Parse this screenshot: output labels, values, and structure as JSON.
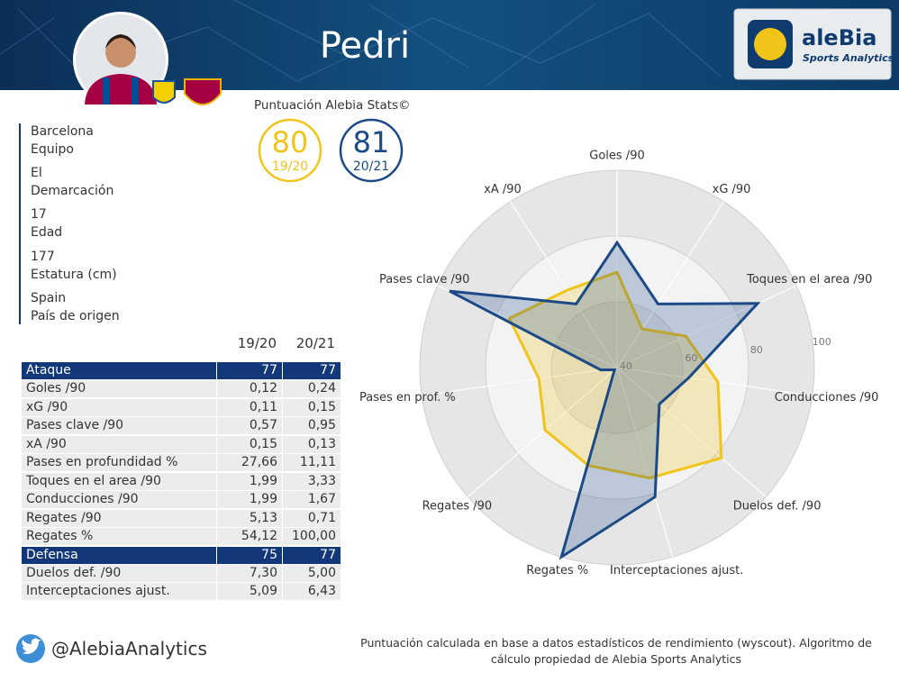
{
  "header": {
    "title": "Pedri"
  },
  "logo": {
    "name": "aleBia",
    "tagline": "Sports Analytics"
  },
  "profile": [
    {
      "value": "Barcelona",
      "label": "Equipo"
    },
    {
      "value": "El",
      "label": "Demarcación"
    },
    {
      "value": 17,
      "label": "Edad"
    },
    {
      "value": 177,
      "label": "Estatura (cm)"
    },
    {
      "value": "Spain",
      "label": "País de origen"
    }
  ],
  "scores": {
    "title": "Puntuación Alebia Stats©",
    "items": [
      {
        "value": 80,
        "season": "19/20"
      },
      {
        "value": 81,
        "season": "20/21"
      }
    ]
  },
  "table": {
    "columns": [
      "19/20",
      "20/21"
    ],
    "groups": [
      {
        "name": "Ataque",
        "scores": [
          77,
          77
        ],
        "rows": [
          [
            "Goles /90",
            "0,12",
            "0,24"
          ],
          [
            "xG /90",
            "0,11",
            "0,15"
          ],
          [
            "Pases clave /90",
            "0,57",
            "0,95"
          ],
          [
            "xA /90",
            "0,15",
            "0,13"
          ],
          [
            "Pases en profundidad %",
            "27,66",
            "11,11"
          ],
          [
            "Toques en el area /90",
            "1,99",
            "3,33"
          ],
          [
            "Conducciones /90",
            "1,99",
            "1,67"
          ],
          [
            "Regates /90",
            "5,13",
            "0,71"
          ],
          [
            "Regates %",
            "54,12",
            "100,00"
          ]
        ]
      },
      {
        "name": "Defensa",
        "scores": [
          75,
          77
        ],
        "rows": [
          [
            "Duelos def. /90",
            "7,30",
            "5,00"
          ],
          [
            "Interceptaciones ajust.",
            "5,09",
            "6,43"
          ]
        ]
      }
    ]
  },
  "chart_data": {
    "type": "radar",
    "categories": [
      "Goles /90",
      "xG /90",
      "Toques en el area /90",
      "Conducciones /90",
      "Duelos def. /90",
      "Interceptaciones ajust.",
      "Regates %",
      "Regates /90",
      "Pases en prof. %",
      "Pases clave /90",
      "xA /90"
    ],
    "series": [
      {
        "color": "#f0c419",
        "values": [
          69,
          54,
          63,
          71,
          82,
          75,
          71,
          69,
          64,
          76,
          68
        ]
      },
      {
        "color": "#1c4a87",
        "values": [
          78,
          63,
          87,
          62,
          57,
          81,
          100,
          41,
          45,
          96,
          63
        ]
      }
    ],
    "rlim": [
      40,
      100
    ],
    "rticks": [
      40,
      60,
      80,
      100
    ],
    "grid": true
  },
  "footer": {
    "handle": "@AlebiaAnalytics",
    "note": "Puntuación calculada en base a datos estadísticos de rendimiento (wyscout). Algoritmo de cálculo propiedad de Alebia Sports Analytics"
  }
}
